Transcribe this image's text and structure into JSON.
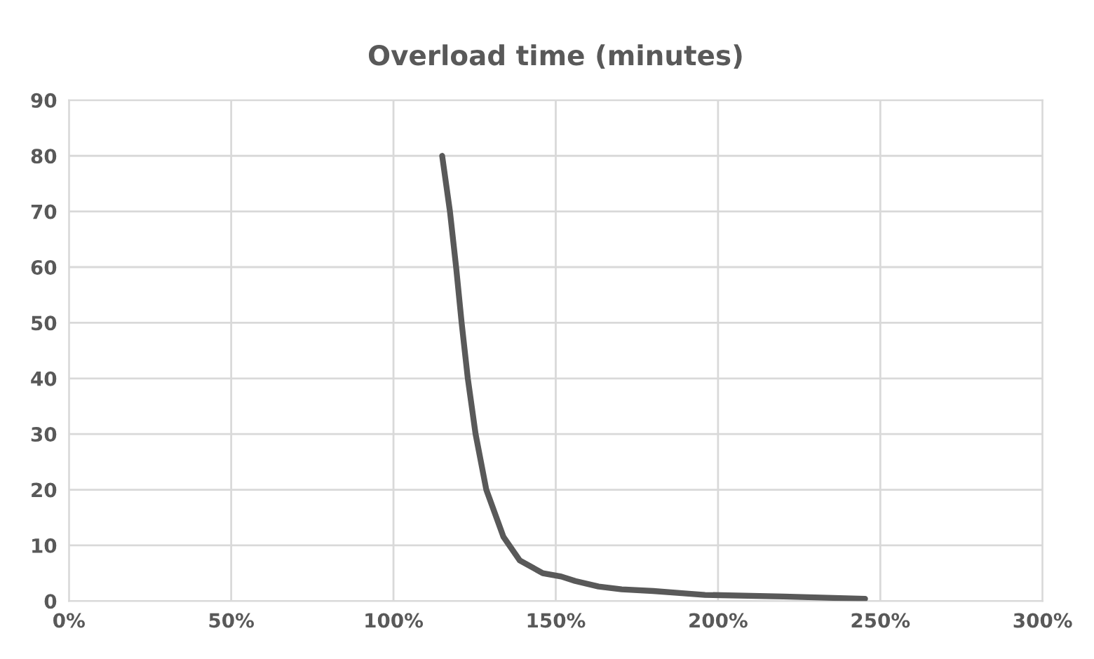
{
  "chart_data": {
    "type": "line",
    "title": "Overload time (minutes)",
    "series": [
      {
        "color": "#595959",
        "x": [
          115,
          117.4,
          119.3,
          121,
          122.9,
          125.3,
          128.6,
          133.9,
          138.9,
          146,
          151.7,
          156,
          163.2,
          170.3,
          180,
          188.9,
          196,
          220.2,
          245.3
        ],
        "values": [
          80,
          70,
          60,
          50,
          40,
          30,
          20,
          11.5,
          7.3,
          5,
          4.4,
          3.6,
          2.6,
          2.1,
          1.8,
          1.4,
          1.1,
          0.8,
          0.4
        ]
      }
    ],
    "xlim": [
      0,
      300
    ],
    "xticks": [
      {
        "value": 0,
        "label": "0%"
      },
      {
        "value": 50,
        "label": "50%"
      },
      {
        "value": 100,
        "label": "100%"
      },
      {
        "value": 150,
        "label": "150%"
      },
      {
        "value": 200,
        "label": "200%"
      },
      {
        "value": 250,
        "label": "250%"
      },
      {
        "value": 300,
        "label": "300%"
      }
    ],
    "ylim": [
      0,
      90
    ],
    "yticks": [
      0,
      10,
      20,
      30,
      40,
      50,
      60,
      70,
      80,
      90
    ],
    "grid": true,
    "marker": "none",
    "line_style": "solid"
  }
}
